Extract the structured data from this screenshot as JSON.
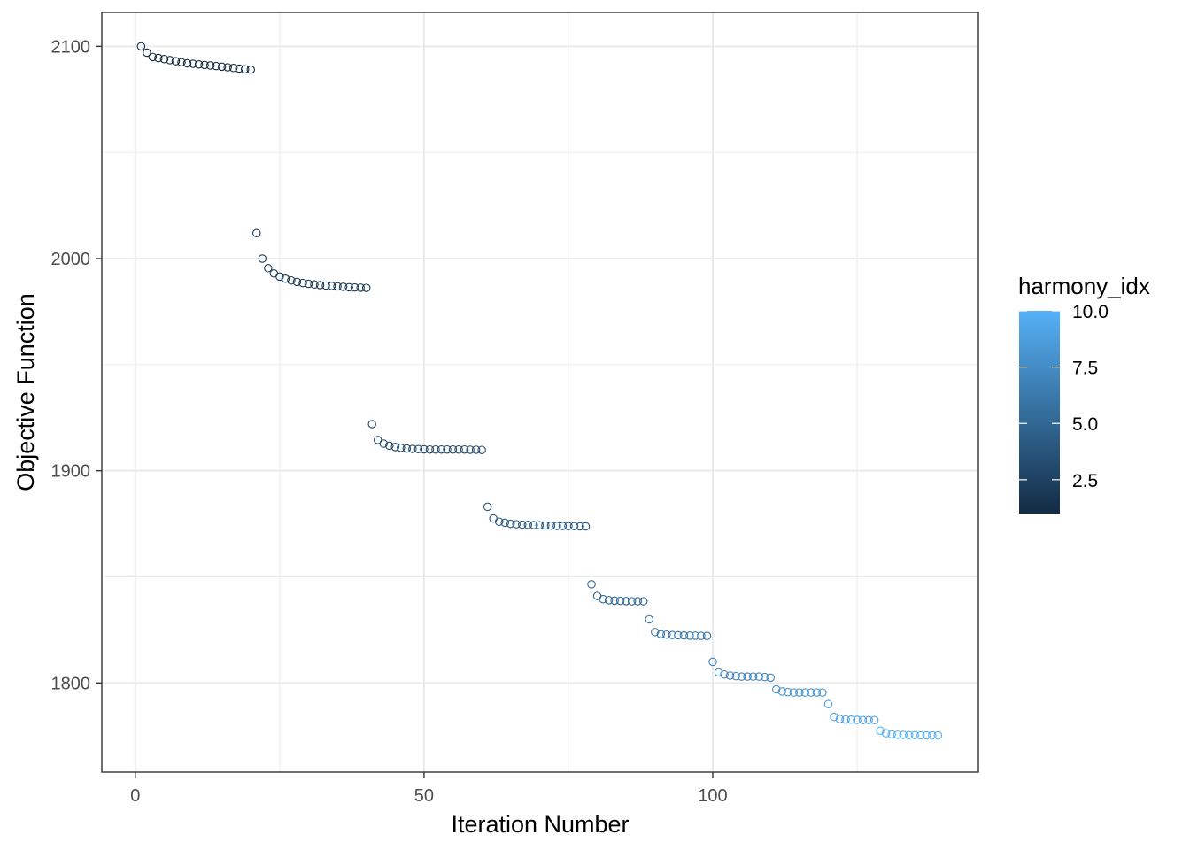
{
  "chart_data": {
    "type": "scatter",
    "xlabel": "Iteration Number",
    "ylabel": "Objective Function",
    "xlim": [
      -5.8,
      146
    ],
    "ylim": [
      1758,
      2116
    ],
    "x_ticks": [
      0,
      50,
      100
    ],
    "x_tick_labels": [
      "0",
      "50",
      "100"
    ],
    "x_minor_ticks": [
      25,
      75,
      125
    ],
    "y_ticks": [
      1800,
      1900,
      2000,
      2100
    ],
    "y_tick_labels": [
      "1800",
      "1900",
      "2000",
      "2100"
    ],
    "y_minor_ticks": [
      1850,
      1950,
      2050
    ],
    "grid": true,
    "theme": "bw",
    "legend": {
      "title": "harmony_idx",
      "position": "right",
      "type": "colorbar",
      "range": [
        1,
        10
      ],
      "breaks": [
        2.5,
        5.0,
        7.5,
        10.0
      ],
      "break_labels": [
        "2.5",
        "5.0",
        "7.5",
        "10.0"
      ],
      "low_color": "#132B43",
      "high_color": "#56B1F7"
    },
    "series": [
      {
        "x": [
          1,
          2,
          3,
          4,
          5,
          6,
          7,
          8,
          9,
          10,
          11,
          12,
          13,
          14,
          15,
          16,
          17,
          18,
          19,
          20,
          21,
          22,
          23,
          24,
          25,
          26,
          27,
          28,
          29,
          30,
          31,
          32,
          33,
          34,
          35,
          36,
          37,
          38,
          39,
          40,
          41,
          42,
          43,
          44,
          45,
          46,
          47,
          48,
          49,
          50,
          51,
          52,
          53,
          54,
          55,
          56,
          57,
          58,
          59,
          60,
          61,
          62,
          63,
          64,
          65,
          66,
          67,
          68,
          69,
          70,
          71,
          72,
          73,
          74,
          75,
          76,
          77,
          78,
          79,
          80,
          81,
          82,
          83,
          84,
          85,
          86,
          87,
          88,
          89,
          90,
          91,
          92,
          93,
          94,
          95,
          96,
          97,
          98,
          99,
          100,
          101,
          102,
          103,
          104,
          105,
          106,
          107,
          108,
          109,
          110,
          111,
          112,
          113,
          114,
          115,
          116,
          117,
          118,
          119,
          120,
          121,
          122,
          123,
          124,
          125,
          126,
          127,
          128,
          129,
          130,
          131,
          132,
          133,
          134,
          135,
          136,
          137,
          138,
          139
        ],
        "y": [
          2100,
          2097,
          2095,
          2094.5,
          2094,
          2093.5,
          2093,
          2092.5,
          2092,
          2091.8,
          2091.5,
          2091.2,
          2091,
          2090.7,
          2090.4,
          2090.1,
          2089.8,
          2089.5,
          2089.2,
          2089,
          2012,
          2000,
          1995.5,
          1993,
          1991.5,
          1990.5,
          1989.7,
          1989,
          1988.5,
          1988.1,
          1987.8,
          1987.5,
          1987.3,
          1987.1,
          1986.9,
          1986.7,
          1986.5,
          1986.4,
          1986.3,
          1986.2,
          1922,
          1914.5,
          1912.8,
          1911.8,
          1911.2,
          1910.8,
          1910.5,
          1910.3,
          1910.2,
          1910.1,
          1910,
          1910,
          1910,
          1910,
          1910,
          1910,
          1910,
          1909.9,
          1909.9,
          1909.8,
          1883,
          1877.5,
          1876,
          1875.5,
          1875,
          1874.8,
          1874.6,
          1874.5,
          1874.4,
          1874.3,
          1874.2,
          1874.1,
          1874,
          1874,
          1873.9,
          1873.9,
          1873.8,
          1873.8,
          1846.5,
          1841,
          1839.5,
          1839,
          1838.8,
          1838.7,
          1838.6,
          1838.5,
          1838.5,
          1838.5,
          1830,
          1824,
          1823,
          1822.8,
          1822.6,
          1822.5,
          1822.4,
          1822.3,
          1822.3,
          1822.2,
          1822.2,
          1810,
          1805,
          1804,
          1803.5,
          1803.2,
          1803,
          1803,
          1803,
          1803,
          1802.8,
          1802.5,
          1797,
          1796,
          1795.7,
          1795.5,
          1795.5,
          1795.5,
          1795.5,
          1795.5,
          1795.5,
          1790,
          1784,
          1783,
          1782.8,
          1782.7,
          1782.6,
          1782.5,
          1782.5,
          1782.5,
          1777.5,
          1776.3,
          1775.8,
          1775.6,
          1775.5,
          1775.4,
          1775.4,
          1775.3,
          1775.3,
          1775.3,
          1775.3
        ],
        "color_value": [
          1,
          1,
          1,
          1,
          1,
          1,
          1,
          1,
          1,
          1,
          1,
          1,
          1,
          1,
          1,
          1,
          1,
          1,
          1,
          1,
          2,
          2,
          2,
          2,
          2,
          2,
          2,
          2,
          2,
          2,
          2,
          2,
          2,
          2,
          2,
          2,
          2,
          2,
          2,
          2,
          3,
          3,
          3,
          3,
          3,
          3,
          3,
          3,
          3,
          3,
          3,
          3,
          3,
          3,
          3,
          3,
          3,
          3,
          3,
          3,
          4,
          4,
          4,
          4,
          4,
          4,
          4,
          4,
          4,
          4,
          4,
          4,
          4,
          4,
          4,
          4,
          4,
          4,
          5,
          5,
          5,
          5,
          5,
          5,
          5,
          5,
          5,
          5,
          6,
          6,
          6,
          6,
          6,
          6,
          6,
          6,
          6,
          6,
          6,
          7,
          7,
          7,
          7,
          7,
          7,
          7,
          7,
          7,
          7,
          7,
          8,
          8,
          8,
          8,
          8,
          8,
          8,
          8,
          8,
          9,
          9,
          9,
          9,
          9,
          9,
          9,
          9,
          9,
          10,
          10,
          10,
          10,
          10,
          10,
          10,
          10,
          10,
          10,
          10
        ]
      }
    ]
  }
}
